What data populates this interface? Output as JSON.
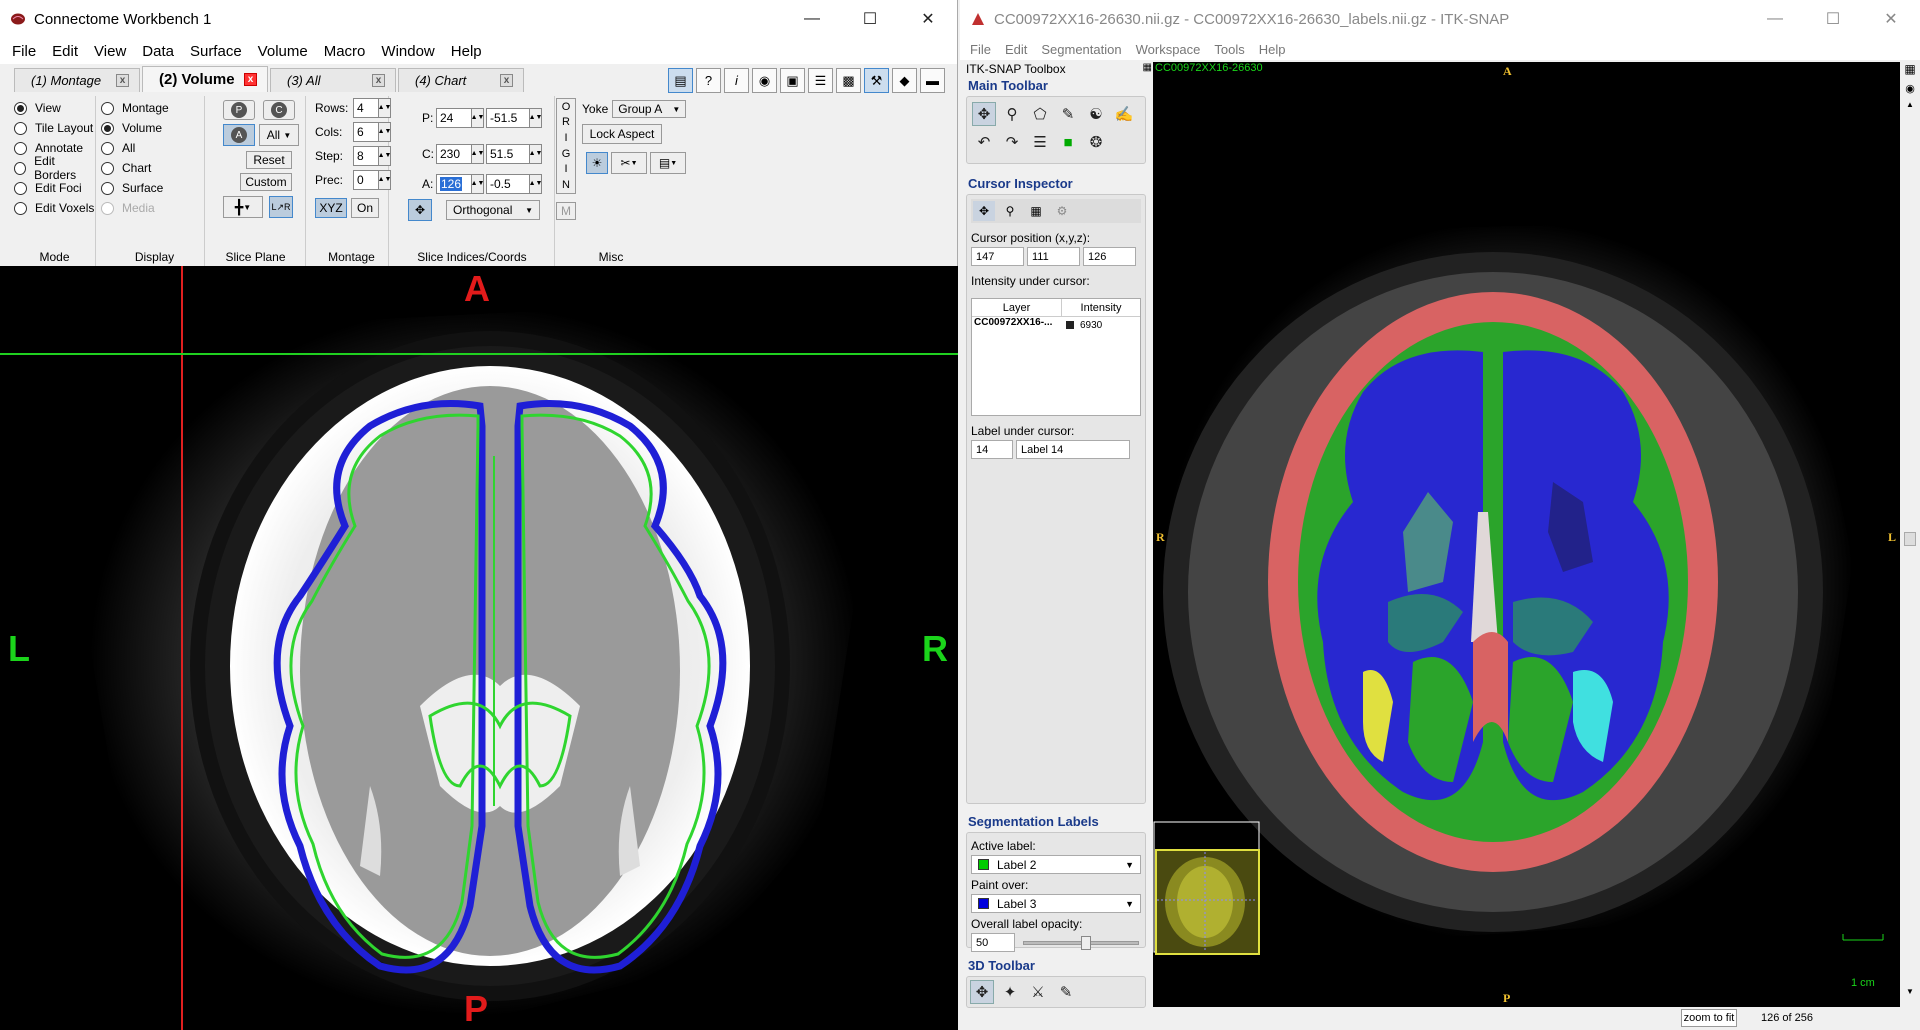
{
  "wb": {
    "title": "Connectome Workbench 1",
    "menu": [
      "File",
      "Edit",
      "View",
      "Data",
      "Surface",
      "Volume",
      "Macro",
      "Window",
      "Help"
    ],
    "tabs": [
      {
        "label": "(1) Montage"
      },
      {
        "label": "(2) Volume"
      },
      {
        "label": "(3) All"
      },
      {
        "label": "(4) Chart"
      }
    ],
    "mode": {
      "label": "Mode",
      "items": [
        "View",
        "Tile Layout",
        "Annotate",
        "Edit Borders",
        "Edit Foci",
        "Edit Voxels"
      ]
    },
    "display": {
      "label": "Display",
      "items": [
        "Montage",
        "Volume",
        "All",
        "Chart",
        "Surface",
        "Media"
      ]
    },
    "sliceplane": {
      "label": "Slice Plane",
      "p": "P",
      "c": "C",
      "a": "A",
      "all": "All",
      "reset": "Reset",
      "custom": "Custom"
    },
    "montage": {
      "label": "Montage",
      "rows_label": "Rows:",
      "rows": "4",
      "cols_label": "Cols:",
      "cols": "6",
      "step_label": "Step:",
      "step": "8",
      "prec_label": "Prec:",
      "prec": "0",
      "xyz": "XYZ",
      "on": "On"
    },
    "slices": {
      "label": "Slice Indices/Coords",
      "p_label": "P:",
      "p_index": "24",
      "p_coord": "-51.5",
      "c_label": "C:",
      "c_index": "230",
      "c_coord": "51.5",
      "a_label": "A:",
      "a_index": "126",
      "a_coord": "-0.5",
      "origin": [
        "O",
        "R",
        "I",
        "G",
        "I",
        "N"
      ],
      "projection": "Orthogonal",
      "m": "M"
    },
    "misc": {
      "label": "Misc",
      "yoke": "Yoke",
      "yoke_group": "Group A",
      "lock_aspect": "Lock Aspect"
    },
    "orientation": {
      "top": "A",
      "bottom": "P",
      "left": "L",
      "right": "R"
    }
  },
  "itk": {
    "title": "CC00972XX16-26630.nii.gz - CC00972XX16-26630_labels.nii.gz - ITK-SNAP",
    "menu": [
      "File",
      "Edit",
      "Segmentation",
      "Workspace",
      "Tools",
      "Help"
    ],
    "toolbox_title": "ITK-SNAP Toolbox",
    "main_toolbar": "Main Toolbar",
    "cursor_inspector": "Cursor Inspector",
    "cursor_position_label": "Cursor position (x,y,z):",
    "cursor_x": "147",
    "cursor_y": "111",
    "cursor_z": "126",
    "intensity_label": "Intensity under cursor:",
    "table_headers": [
      "Layer",
      "Intensity"
    ],
    "table_row": {
      "layer": "CC00972XX16-...",
      "intensity": "6930"
    },
    "label_under_cursor": "Label under cursor:",
    "label_id": "14",
    "label_name": "Label 14",
    "seg_labels": "Segmentation Labels",
    "active_label_caption": "Active label:",
    "active_label": "Label 2",
    "active_color": "#00cc00",
    "paint_over_caption": "Paint over:",
    "paint_over": "Label 3",
    "paint_color": "#0000dd",
    "opacity_caption": "Overall label opacity:",
    "opacity": "50",
    "toolbar_3d": "3D Toolbar",
    "view_name": "CC00972XX16-26630",
    "orientation": {
      "top": "A",
      "bottom": "P",
      "left": "R",
      "right": "L"
    },
    "scale": "1 cm",
    "zoom_fit": "zoom to fit",
    "slice_count": "126 of 256"
  }
}
